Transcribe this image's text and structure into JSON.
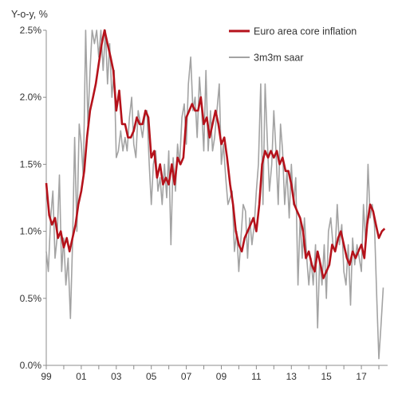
{
  "chart_data": {
    "type": "line",
    "title": "",
    "ylabel": "Y-o-y, %",
    "xlabel": "",
    "ylim": [
      0,
      2.5
    ],
    "xlim": [
      1999,
      2018.5
    ],
    "x_ticks": [
      {
        "x": 1999,
        "label": "99"
      },
      {
        "x": 2001,
        "label": "01"
      },
      {
        "x": 2003,
        "label": "03"
      },
      {
        "x": 2005,
        "label": "05"
      },
      {
        "x": 2007,
        "label": "07"
      },
      {
        "x": 2009,
        "label": "09"
      },
      {
        "x": 2011,
        "label": "11"
      },
      {
        "x": 2013,
        "label": "13"
      },
      {
        "x": 2015,
        "label": "15"
      },
      {
        "x": 2017,
        "label": "17"
      }
    ],
    "y_ticks": [
      {
        "y": 0.0,
        "label": "0.0%"
      },
      {
        "y": 0.5,
        "label": "0.5%"
      },
      {
        "y": 1.0,
        "label": "1.0%"
      },
      {
        "y": 1.5,
        "label": "1.5%"
      },
      {
        "y": 2.0,
        "label": "2.0%"
      },
      {
        "y": 2.5,
        "label": "2.5%"
      }
    ],
    "grid": false,
    "legend_position": "top-right",
    "series": [
      {
        "name": "Euro area core inflation",
        "color": "#b5121b",
        "points": [
          [
            1999.0,
            1.36
          ],
          [
            1999.17,
            1.12
          ],
          [
            1999.33,
            1.05
          ],
          [
            1999.5,
            1.1
          ],
          [
            1999.67,
            0.95
          ],
          [
            1999.83,
            1.0
          ],
          [
            2000.0,
            0.88
          ],
          [
            2000.17,
            0.95
          ],
          [
            2000.33,
            0.85
          ],
          [
            2000.5,
            0.95
          ],
          [
            2000.67,
            1.05
          ],
          [
            2000.83,
            1.2
          ],
          [
            2001.0,
            1.3
          ],
          [
            2001.17,
            1.45
          ],
          [
            2001.33,
            1.7
          ],
          [
            2001.5,
            1.9
          ],
          [
            2001.67,
            2.0
          ],
          [
            2001.83,
            2.1
          ],
          [
            2002.0,
            2.25
          ],
          [
            2002.17,
            2.4
          ],
          [
            2002.33,
            2.5
          ],
          [
            2002.5,
            2.4
          ],
          [
            2002.67,
            2.3
          ],
          [
            2002.83,
            2.2
          ],
          [
            2003.0,
            1.9
          ],
          [
            2003.17,
            2.05
          ],
          [
            2003.33,
            1.8
          ],
          [
            2003.5,
            1.8
          ],
          [
            2003.67,
            1.7
          ],
          [
            2003.83,
            1.7
          ],
          [
            2004.0,
            1.75
          ],
          [
            2004.17,
            1.85
          ],
          [
            2004.33,
            1.8
          ],
          [
            2004.5,
            1.8
          ],
          [
            2004.67,
            1.9
          ],
          [
            2004.83,
            1.85
          ],
          [
            2005.0,
            1.55
          ],
          [
            2005.17,
            1.6
          ],
          [
            2005.33,
            1.4
          ],
          [
            2005.5,
            1.5
          ],
          [
            2005.67,
            1.35
          ],
          [
            2005.83,
            1.4
          ],
          [
            2006.0,
            1.35
          ],
          [
            2006.17,
            1.5
          ],
          [
            2006.33,
            1.35
          ],
          [
            2006.5,
            1.55
          ],
          [
            2006.67,
            1.5
          ],
          [
            2006.83,
            1.55
          ],
          [
            2007.0,
            1.85
          ],
          [
            2007.17,
            1.9
          ],
          [
            2007.33,
            1.95
          ],
          [
            2007.5,
            1.9
          ],
          [
            2007.67,
            1.9
          ],
          [
            2007.83,
            2.0
          ],
          [
            2008.0,
            1.8
          ],
          [
            2008.17,
            1.85
          ],
          [
            2008.33,
            1.7
          ],
          [
            2008.5,
            1.8
          ],
          [
            2008.67,
            1.9
          ],
          [
            2008.83,
            1.8
          ],
          [
            2009.0,
            1.65
          ],
          [
            2009.17,
            1.7
          ],
          [
            2009.33,
            1.55
          ],
          [
            2009.5,
            1.35
          ],
          [
            2009.67,
            1.2
          ],
          [
            2009.83,
            1.0
          ],
          [
            2010.0,
            0.9
          ],
          [
            2010.17,
            0.85
          ],
          [
            2010.33,
            0.95
          ],
          [
            2010.5,
            1.0
          ],
          [
            2010.67,
            1.05
          ],
          [
            2010.83,
            1.1
          ],
          [
            2011.0,
            1.0
          ],
          [
            2011.17,
            1.2
          ],
          [
            2011.33,
            1.5
          ],
          [
            2011.5,
            1.6
          ],
          [
            2011.67,
            1.55
          ],
          [
            2011.83,
            1.6
          ],
          [
            2012.0,
            1.55
          ],
          [
            2012.17,
            1.6
          ],
          [
            2012.33,
            1.5
          ],
          [
            2012.5,
            1.55
          ],
          [
            2012.67,
            1.45
          ],
          [
            2012.83,
            1.45
          ],
          [
            2013.0,
            1.35
          ],
          [
            2013.17,
            1.2
          ],
          [
            2013.33,
            1.15
          ],
          [
            2013.5,
            1.1
          ],
          [
            2013.67,
            1.0
          ],
          [
            2013.83,
            0.8
          ],
          [
            2014.0,
            0.85
          ],
          [
            2014.17,
            0.75
          ],
          [
            2014.33,
            0.7
          ],
          [
            2014.5,
            0.85
          ],
          [
            2014.67,
            0.75
          ],
          [
            2014.83,
            0.65
          ],
          [
            2015.0,
            0.7
          ],
          [
            2015.17,
            0.75
          ],
          [
            2015.33,
            0.9
          ],
          [
            2015.5,
            0.85
          ],
          [
            2015.67,
            0.95
          ],
          [
            2015.83,
            1.0
          ],
          [
            2016.0,
            0.9
          ],
          [
            2016.17,
            0.8
          ],
          [
            2016.33,
            0.75
          ],
          [
            2016.5,
            0.85
          ],
          [
            2016.67,
            0.8
          ],
          [
            2016.83,
            0.85
          ],
          [
            2017.0,
            0.9
          ],
          [
            2017.17,
            0.8
          ],
          [
            2017.33,
            1.05
          ],
          [
            2017.5,
            1.2
          ],
          [
            2017.67,
            1.15
          ],
          [
            2017.83,
            1.05
          ],
          [
            2018.0,
            0.95
          ],
          [
            2018.17,
            1.0
          ],
          [
            2018.33,
            1.02
          ]
        ]
      },
      {
        "name": "3m3m saar",
        "color": "#a3a3a3",
        "points": [
          [
            1999.0,
            0.85
          ],
          [
            1999.12,
            0.7
          ],
          [
            1999.25,
            1.1
          ],
          [
            1999.38,
            1.3
          ],
          [
            1999.5,
            0.8
          ],
          [
            1999.62,
            0.95
          ],
          [
            1999.75,
            1.42
          ],
          [
            1999.88,
            0.7
          ],
          [
            2000.0,
            0.95
          ],
          [
            2000.12,
            0.6
          ],
          [
            2000.25,
            0.8
          ],
          [
            2000.38,
            0.35
          ],
          [
            2000.5,
            0.9
          ],
          [
            2000.62,
            1.7
          ],
          [
            2000.75,
            1.0
          ],
          [
            2000.88,
            1.8
          ],
          [
            2001.0,
            1.65
          ],
          [
            2001.12,
            1.4
          ],
          [
            2001.25,
            2.55
          ],
          [
            2001.38,
            1.8
          ],
          [
            2001.5,
            2.2
          ],
          [
            2001.62,
            2.6
          ],
          [
            2001.75,
            2.4
          ],
          [
            2001.88,
            2.5
          ],
          [
            2002.0,
            2.3
          ],
          [
            2002.12,
            2.6
          ],
          [
            2002.25,
            2.2
          ],
          [
            2002.38,
            2.5
          ],
          [
            2002.5,
            2.1
          ],
          [
            2002.62,
            2.4
          ],
          [
            2002.75,
            2.0
          ],
          [
            2002.88,
            2.2
          ],
          [
            2003.0,
            1.55
          ],
          [
            2003.12,
            1.6
          ],
          [
            2003.25,
            1.75
          ],
          [
            2003.38,
            1.6
          ],
          [
            2003.5,
            1.7
          ],
          [
            2003.62,
            1.6
          ],
          [
            2003.75,
            1.85
          ],
          [
            2003.88,
            2.0
          ],
          [
            2004.0,
            1.65
          ],
          [
            2004.12,
            1.55
          ],
          [
            2004.25,
            1.9
          ],
          [
            2004.38,
            1.8
          ],
          [
            2004.5,
            1.7
          ],
          [
            2004.62,
            1.85
          ],
          [
            2004.75,
            1.9
          ],
          [
            2004.88,
            1.5
          ],
          [
            2005.0,
            1.2
          ],
          [
            2005.12,
            1.5
          ],
          [
            2005.25,
            1.6
          ],
          [
            2005.38,
            1.3
          ],
          [
            2005.5,
            1.4
          ],
          [
            2005.62,
            1.2
          ],
          [
            2005.75,
            1.5
          ],
          [
            2005.88,
            1.25
          ],
          [
            2006.0,
            1.6
          ],
          [
            2006.12,
            0.9
          ],
          [
            2006.25,
            1.55
          ],
          [
            2006.38,
            1.3
          ],
          [
            2006.5,
            1.65
          ],
          [
            2006.62,
            1.5
          ],
          [
            2006.75,
            1.85
          ],
          [
            2006.88,
            1.95
          ],
          [
            2007.0,
            1.65
          ],
          [
            2007.12,
            2.1
          ],
          [
            2007.25,
            2.3
          ],
          [
            2007.38,
            1.9
          ],
          [
            2007.5,
            2.0
          ],
          [
            2007.62,
            1.7
          ],
          [
            2007.75,
            2.15
          ],
          [
            2007.88,
            1.9
          ],
          [
            2008.0,
            1.6
          ],
          [
            2008.12,
            2.2
          ],
          [
            2008.25,
            1.6
          ],
          [
            2008.38,
            1.9
          ],
          [
            2008.5,
            1.6
          ],
          [
            2008.62,
            1.7
          ],
          [
            2008.75,
            1.9
          ],
          [
            2008.88,
            2.1
          ],
          [
            2009.0,
            1.5
          ],
          [
            2009.12,
            1.65
          ],
          [
            2009.25,
            1.4
          ],
          [
            2009.38,
            1.2
          ],
          [
            2009.5,
            1.25
          ],
          [
            2009.62,
            1.3
          ],
          [
            2009.75,
            0.85
          ],
          [
            2009.88,
            1.0
          ],
          [
            2010.0,
            0.7
          ],
          [
            2010.12,
            0.95
          ],
          [
            2010.25,
            1.2
          ],
          [
            2010.38,
            1.15
          ],
          [
            2010.5,
            0.8
          ],
          [
            2010.62,
            1.1
          ],
          [
            2010.75,
            0.9
          ],
          [
            2010.88,
            1.05
          ],
          [
            2011.0,
            1.3
          ],
          [
            2011.12,
            1.5
          ],
          [
            2011.25,
            2.1
          ],
          [
            2011.38,
            1.2
          ],
          [
            2011.5,
            2.1
          ],
          [
            2011.62,
            1.7
          ],
          [
            2011.75,
            1.3
          ],
          [
            2011.88,
            1.5
          ],
          [
            2012.0,
            1.9
          ],
          [
            2012.12,
            1.6
          ],
          [
            2012.25,
            1.2
          ],
          [
            2012.38,
            1.8
          ],
          [
            2012.5,
            1.6
          ],
          [
            2012.62,
            1.2
          ],
          [
            2012.75,
            1.45
          ],
          [
            2012.88,
            1.1
          ],
          [
            2013.0,
            1.5
          ],
          [
            2013.12,
            1.2
          ],
          [
            2013.25,
            1.4
          ],
          [
            2013.38,
            0.6
          ],
          [
            2013.5,
            1.1
          ],
          [
            2013.62,
            0.8
          ],
          [
            2013.75,
            1.1
          ],
          [
            2013.88,
            0.8
          ],
          [
            2014.0,
            0.6
          ],
          [
            2014.12,
            0.8
          ],
          [
            2014.25,
            0.6
          ],
          [
            2014.38,
            0.9
          ],
          [
            2014.5,
            0.28
          ],
          [
            2014.62,
            0.8
          ],
          [
            2014.75,
            0.6
          ],
          [
            2014.88,
            0.9
          ],
          [
            2015.0,
            0.5
          ],
          [
            2015.12,
            1.0
          ],
          [
            2015.25,
            1.1
          ],
          [
            2015.38,
            0.9
          ],
          [
            2015.5,
            0.85
          ],
          [
            2015.62,
            1.2
          ],
          [
            2015.75,
            0.9
          ],
          [
            2015.88,
            1.05
          ],
          [
            2016.0,
            0.7
          ],
          [
            2016.12,
            0.6
          ],
          [
            2016.25,
            0.9
          ],
          [
            2016.38,
            0.45
          ],
          [
            2016.5,
            0.95
          ],
          [
            2016.62,
            0.75
          ],
          [
            2016.75,
            0.9
          ],
          [
            2016.88,
            0.8
          ],
          [
            2017.0,
            0.7
          ],
          [
            2017.12,
            1.2
          ],
          [
            2017.25,
            0.9
          ],
          [
            2017.38,
            1.5
          ],
          [
            2017.5,
            1.1
          ],
          [
            2017.62,
            1.2
          ],
          [
            2017.75,
            1.05
          ],
          [
            2017.88,
            0.5
          ],
          [
            2018.0,
            0.05
          ],
          [
            2018.12,
            0.3
          ],
          [
            2018.25,
            0.58
          ]
        ]
      }
    ]
  }
}
